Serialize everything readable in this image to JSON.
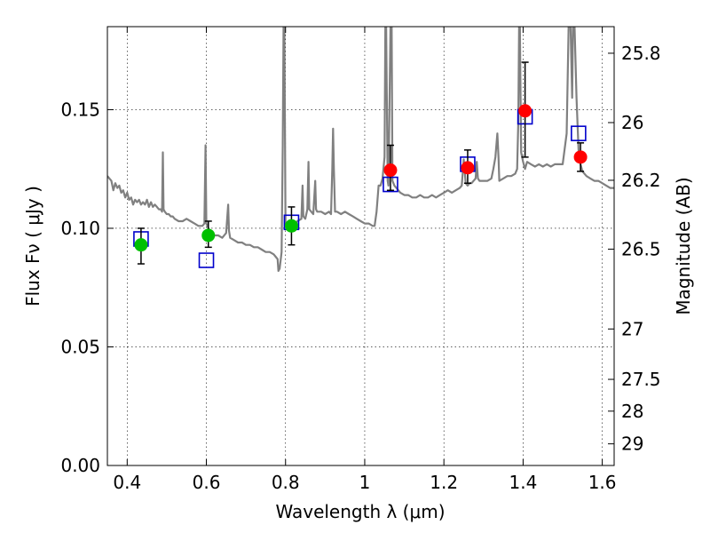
{
  "chart_data": {
    "type": "scatter",
    "xlabel": "Wavelength  λ (μm)",
    "ylabel": "Flux  Fν  ( μJy )",
    "y2label": "Magnitude (AB)",
    "xlim": [
      0.35,
      1.63
    ],
    "ylim": [
      0.0,
      0.185
    ],
    "grid": true,
    "x_ticks": [
      0.4,
      0.6,
      0.8,
      1.0,
      1.2,
      1.4,
      1.6
    ],
    "x_tick_labels": [
      "0.4",
      "0.6",
      "0.8",
      "1",
      "1.2",
      "1.4",
      "1.6"
    ],
    "y_ticks": [
      0.0,
      0.05,
      0.1,
      0.15
    ],
    "y_tick_labels": [
      "0.00",
      "0.05",
      "0.10",
      "0.15"
    ],
    "y2_ticks": [
      {
        "mag": 25.8,
        "label": "25.8"
      },
      {
        "mag": 26,
        "label": "26"
      },
      {
        "mag": 26.2,
        "label": "26.2"
      },
      {
        "mag": 26.5,
        "label": "26.5"
      },
      {
        "mag": 27,
        "label": "27"
      },
      {
        "mag": 27.5,
        "label": "27.5"
      },
      {
        "mag": 28,
        "label": "28"
      },
      {
        "mag": 29,
        "label": "29"
      }
    ],
    "colors": {
      "model": "#808080",
      "green_points": "#00c000",
      "red_points": "#ff0000",
      "squares": "#0000cc",
      "errorbar": "#000000"
    },
    "series": [
      {
        "kind": "model_spectrum",
        "points": [
          [
            0.35,
            0.122
          ],
          [
            0.36,
            0.12
          ],
          [
            0.365,
            0.116
          ],
          [
            0.37,
            0.119
          ],
          [
            0.375,
            0.117
          ],
          [
            0.38,
            0.118
          ],
          [
            0.385,
            0.115
          ],
          [
            0.39,
            0.116
          ],
          [
            0.395,
            0.113
          ],
          [
            0.4,
            0.115
          ],
          [
            0.405,
            0.112
          ],
          [
            0.41,
            0.113
          ],
          [
            0.415,
            0.11
          ],
          [
            0.42,
            0.112
          ],
          [
            0.425,
            0.111
          ],
          [
            0.43,
            0.112
          ],
          [
            0.435,
            0.11
          ],
          [
            0.44,
            0.111
          ],
          [
            0.445,
            0.11
          ],
          [
            0.45,
            0.112
          ],
          [
            0.455,
            0.109
          ],
          [
            0.46,
            0.111
          ],
          [
            0.465,
            0.109
          ],
          [
            0.47,
            0.11
          ],
          [
            0.475,
            0.109
          ],
          [
            0.48,
            0.108
          ],
          [
            0.485,
            0.108
          ],
          [
            0.488,
            0.107
          ],
          [
            0.49,
            0.132
          ],
          [
            0.492,
            0.108
          ],
          [
            0.495,
            0.107
          ],
          [
            0.5,
            0.106
          ],
          [
            0.505,
            0.106
          ],
          [
            0.51,
            0.105
          ],
          [
            0.515,
            0.105
          ],
          [
            0.52,
            0.104
          ],
          [
            0.53,
            0.103
          ],
          [
            0.54,
            0.103
          ],
          [
            0.55,
            0.104
          ],
          [
            0.56,
            0.103
          ],
          [
            0.57,
            0.102
          ],
          [
            0.58,
            0.101
          ],
          [
            0.59,
            0.101
          ],
          [
            0.595,
            0.102
          ],
          [
            0.598,
            0.135
          ],
          [
            0.6,
            0.102
          ],
          [
            0.605,
            0.1
          ],
          [
            0.61,
            0.099
          ],
          [
            0.615,
            0.098
          ],
          [
            0.62,
            0.097
          ],
          [
            0.63,
            0.097
          ],
          [
            0.64,
            0.096
          ],
          [
            0.65,
            0.098
          ],
          [
            0.655,
            0.11
          ],
          [
            0.657,
            0.099
          ],
          [
            0.66,
            0.096
          ],
          [
            0.67,
            0.095
          ],
          [
            0.68,
            0.094
          ],
          [
            0.69,
            0.094
          ],
          [
            0.7,
            0.093
          ],
          [
            0.71,
            0.093
          ],
          [
            0.72,
            0.092
          ],
          [
            0.73,
            0.092
          ],
          [
            0.74,
            0.091
          ],
          [
            0.75,
            0.09
          ],
          [
            0.76,
            0.09
          ],
          [
            0.77,
            0.089
          ],
          [
            0.775,
            0.088
          ],
          [
            0.78,
            0.087
          ],
          [
            0.782,
            0.082
          ],
          [
            0.785,
            0.083
          ],
          [
            0.79,
            0.09
          ],
          [
            0.793,
            0.135
          ],
          [
            0.795,
            0.185
          ],
          [
            0.797,
            0.185
          ],
          [
            0.8,
            0.102
          ],
          [
            0.805,
            0.101
          ],
          [
            0.81,
            0.102
          ],
          [
            0.82,
            0.101
          ],
          [
            0.83,
            0.103
          ],
          [
            0.84,
            0.104
          ],
          [
            0.843,
            0.118
          ],
          [
            0.845,
            0.105
          ],
          [
            0.85,
            0.104
          ],
          [
            0.855,
            0.108
          ],
          [
            0.858,
            0.128
          ],
          [
            0.86,
            0.108
          ],
          [
            0.865,
            0.107
          ],
          [
            0.87,
            0.106
          ],
          [
            0.875,
            0.12
          ],
          [
            0.877,
            0.108
          ],
          [
            0.88,
            0.107
          ],
          [
            0.89,
            0.107
          ],
          [
            0.9,
            0.106
          ],
          [
            0.91,
            0.107
          ],
          [
            0.915,
            0.106
          ],
          [
            0.918,
            0.125
          ],
          [
            0.92,
            0.142
          ],
          [
            0.922,
            0.125
          ],
          [
            0.925,
            0.107
          ],
          [
            0.93,
            0.107
          ],
          [
            0.94,
            0.106
          ],
          [
            0.95,
            0.107
          ],
          [
            0.96,
            0.106
          ],
          [
            0.97,
            0.105
          ],
          [
            0.98,
            0.104
          ],
          [
            0.99,
            0.103
          ],
          [
            1.0,
            0.102
          ],
          [
            1.01,
            0.102
          ],
          [
            1.02,
            0.101
          ],
          [
            1.025,
            0.101
          ],
          [
            1.03,
            0.107
          ],
          [
            1.035,
            0.118
          ],
          [
            1.04,
            0.118
          ],
          [
            1.045,
            0.121
          ],
          [
            1.05,
            0.13
          ],
          [
            1.052,
            0.185
          ],
          [
            1.054,
            0.185
          ],
          [
            1.058,
            0.12
          ],
          [
            1.06,
            0.118
          ],
          [
            1.065,
            0.185
          ],
          [
            1.068,
            0.185
          ],
          [
            1.07,
            0.12
          ],
          [
            1.075,
            0.118
          ],
          [
            1.08,
            0.117
          ],
          [
            1.09,
            0.115
          ],
          [
            1.1,
            0.114
          ],
          [
            1.11,
            0.114
          ],
          [
            1.12,
            0.113
          ],
          [
            1.13,
            0.113
          ],
          [
            1.14,
            0.114
          ],
          [
            1.15,
            0.113
          ],
          [
            1.16,
            0.113
          ],
          [
            1.17,
            0.114
          ],
          [
            1.18,
            0.113
          ],
          [
            1.19,
            0.114
          ],
          [
            1.2,
            0.115
          ],
          [
            1.21,
            0.116
          ],
          [
            1.22,
            0.115
          ],
          [
            1.23,
            0.116
          ],
          [
            1.24,
            0.117
          ],
          [
            1.245,
            0.118
          ],
          [
            1.25,
            0.129
          ],
          [
            1.255,
            0.119
          ],
          [
            1.26,
            0.118
          ],
          [
            1.265,
            0.119
          ],
          [
            1.27,
            0.119
          ],
          [
            1.275,
            0.12
          ],
          [
            1.28,
            0.121
          ],
          [
            1.283,
            0.128
          ],
          [
            1.286,
            0.121
          ],
          [
            1.29,
            0.12
          ],
          [
            1.3,
            0.12
          ],
          [
            1.31,
            0.12
          ],
          [
            1.32,
            0.121
          ],
          [
            1.325,
            0.125
          ],
          [
            1.33,
            0.13
          ],
          [
            1.335,
            0.14
          ],
          [
            1.338,
            0.13
          ],
          [
            1.34,
            0.12
          ],
          [
            1.35,
            0.121
          ],
          [
            1.36,
            0.122
          ],
          [
            1.37,
            0.122
          ],
          [
            1.38,
            0.123
          ],
          [
            1.385,
            0.125
          ],
          [
            1.388,
            0.145
          ],
          [
            1.39,
            0.185
          ],
          [
            1.392,
            0.185
          ],
          [
            1.395,
            0.132
          ],
          [
            1.4,
            0.128
          ],
          [
            1.405,
            0.125
          ],
          [
            1.41,
            0.128
          ],
          [
            1.42,
            0.127
          ],
          [
            1.43,
            0.126
          ],
          [
            1.44,
            0.127
          ],
          [
            1.45,
            0.126
          ],
          [
            1.46,
            0.127
          ],
          [
            1.47,
            0.126
          ],
          [
            1.48,
            0.127
          ],
          [
            1.49,
            0.127
          ],
          [
            1.5,
            0.127
          ],
          [
            1.51,
            0.14
          ],
          [
            1.515,
            0.185
          ],
          [
            1.52,
            0.185
          ],
          [
            1.524,
            0.155
          ],
          [
            1.526,
            0.185
          ],
          [
            1.53,
            0.185
          ],
          [
            1.535,
            0.155
          ],
          [
            1.54,
            0.133
          ],
          [
            1.545,
            0.127
          ],
          [
            1.55,
            0.124
          ],
          [
            1.56,
            0.122
          ],
          [
            1.57,
            0.121
          ],
          [
            1.58,
            0.12
          ],
          [
            1.59,
            0.12
          ],
          [
            1.6,
            0.119
          ],
          [
            1.61,
            0.118
          ],
          [
            1.62,
            0.117
          ],
          [
            1.63,
            0.117
          ]
        ]
      },
      {
        "kind": "observed_points_green",
        "points": [
          {
            "x": 0.435,
            "y": 0.093,
            "yerr_low": 0.085,
            "yerr_high": 0.1
          },
          {
            "x": 0.605,
            "y": 0.097,
            "yerr_low": 0.092,
            "yerr_high": 0.103
          },
          {
            "x": 0.815,
            "y": 0.101,
            "yerr_low": 0.093,
            "yerr_high": 0.109
          }
        ]
      },
      {
        "kind": "observed_points_red",
        "points": [
          {
            "x": 1.065,
            "y": 0.1245,
            "yerr_low": 0.116,
            "yerr_high": 0.135
          },
          {
            "x": 1.26,
            "y": 0.1255,
            "yerr_low": 0.119,
            "yerr_high": 0.133
          },
          {
            "x": 1.405,
            "y": 0.1495,
            "yerr_low": 0.13,
            "yerr_high": 0.17
          },
          {
            "x": 1.545,
            "y": 0.13,
            "yerr_low": 0.124,
            "yerr_high": 0.136
          }
        ]
      },
      {
        "kind": "model_photometry_squares",
        "points": [
          {
            "x": 0.435,
            "y": 0.0955
          },
          {
            "x": 0.6,
            "y": 0.0865
          },
          {
            "x": 0.815,
            "y": 0.1025
          },
          {
            "x": 1.065,
            "y": 0.1185
          },
          {
            "x": 1.26,
            "y": 0.127
          },
          {
            "x": 1.405,
            "y": 0.147
          },
          {
            "x": 1.54,
            "y": 0.14
          }
        ]
      }
    ]
  }
}
